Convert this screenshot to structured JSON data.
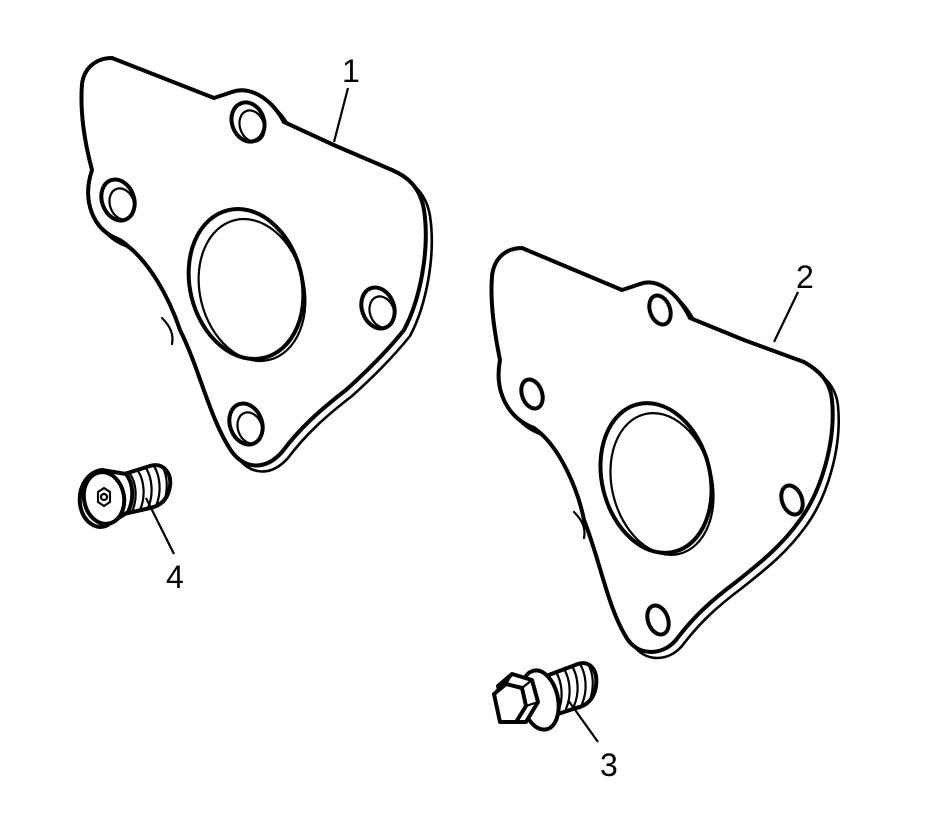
{
  "diagram": {
    "callouts": [
      {
        "id": "1",
        "label": "1"
      },
      {
        "id": "2",
        "label": "2"
      },
      {
        "id": "3",
        "label": "3"
      },
      {
        "id": "4",
        "label": "4"
      }
    ],
    "parts": [
      "cover-plate",
      "cover-plate-gasket",
      "hex-flange-bolt",
      "flat-head-screw"
    ]
  }
}
